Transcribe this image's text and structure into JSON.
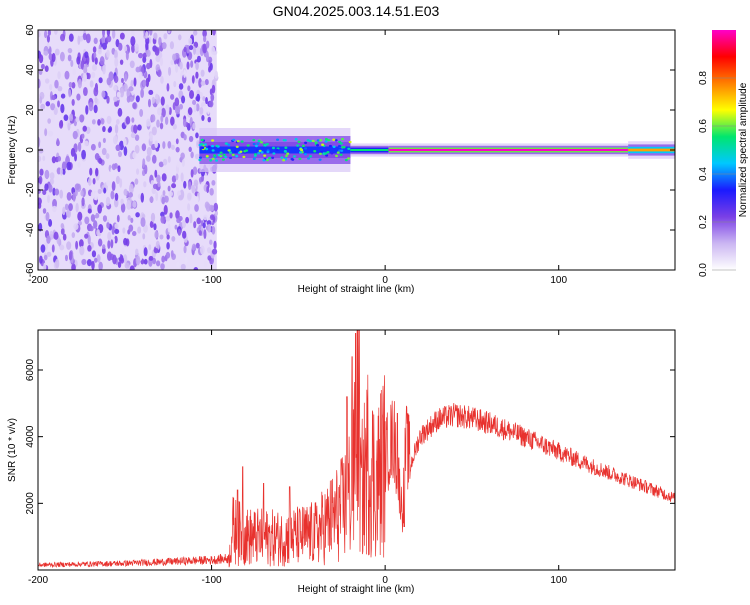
{
  "title": "GN04.2025.003.14.51.E03",
  "chart_data": [
    {
      "type": "heatmap",
      "xlabel": "Height of straight line (km)",
      "ylabel": "Frequency (Hz)",
      "xlim": [
        -200,
        167
      ],
      "ylim": [
        -60,
        60
      ],
      "xticks": [
        -200,
        -100,
        0,
        100
      ],
      "yticks": [
        60,
        40,
        20,
        0,
        -20,
        -40,
        -60
      ],
      "noise_region_x": [
        -200,
        -97
      ],
      "signal_segments": [
        {
          "x": [
            -107,
            -20
          ],
          "amplitude": 0.35,
          "halfwidth_hz": 5
        },
        {
          "x": [
            -20,
            2
          ],
          "amplitude": 0.55,
          "halfwidth_hz": 1.5
        },
        {
          "x": [
            2,
            140
          ],
          "amplitude": 1.0,
          "halfwidth_hz": 1.5
        },
        {
          "x": [
            140,
            167
          ],
          "amplitude": 0.75,
          "halfwidth_hz": 2
        }
      ],
      "colorbar": {
        "label": "Normalized spectral amplitude",
        "range": [
          0,
          1
        ],
        "ticks": [
          0.0,
          0.2,
          0.4,
          0.6,
          0.8
        ]
      },
      "colorscale": [
        "#ffffff",
        "#cbb6f2",
        "#7a3fe6",
        "#1a1aff",
        "#00c8ff",
        "#00e66e",
        "#ffff00",
        "#ff8000",
        "#ff0000",
        "#ff00c8"
      ]
    },
    {
      "type": "line",
      "xlabel": "Height of straight line (km)",
      "ylabel": "SNR (10 * v/v)",
      "xlim": [
        -200,
        167
      ],
      "ylim": [
        0,
        7200
      ],
      "xticks": [
        -200,
        -100,
        0,
        100
      ],
      "yticks": [
        2000,
        4000,
        6000
      ],
      "color": "#e8322e",
      "series": [
        {
          "x": [
            -200,
            -150,
            -100,
            -90,
            -88,
            -80,
            -60,
            -40,
            -25,
            -18,
            -16,
            -14,
            -10,
            -5,
            0,
            5,
            10,
            12,
            15,
            20,
            30,
            40,
            50,
            60,
            80,
            100,
            120,
            140,
            160,
            167
          ],
          "y": [
            150,
            200,
            300,
            350,
            1200,
            1000,
            950,
            1100,
            1800,
            2600,
            7000,
            2200,
            3300,
            2600,
            3400,
            4000,
            1700,
            3800,
            3200,
            4000,
            4500,
            4650,
            4550,
            4400,
            4000,
            3550,
            3100,
            2700,
            2300,
            2150
          ],
          "spikes": [
            {
              "x": -17,
              "y": 7100
            },
            {
              "x": -19,
              "y": 6400
            },
            {
              "x": -22,
              "y": 5200
            },
            {
              "x": 11,
              "y": 1300
            },
            {
              "x": 7,
              "y": 4700
            },
            {
              "x": -85,
              "y": 2400
            },
            {
              "x": -82,
              "y": 3100
            },
            {
              "x": -70,
              "y": 2600
            },
            {
              "x": -55,
              "y": 2500
            }
          ]
        }
      ]
    }
  ]
}
